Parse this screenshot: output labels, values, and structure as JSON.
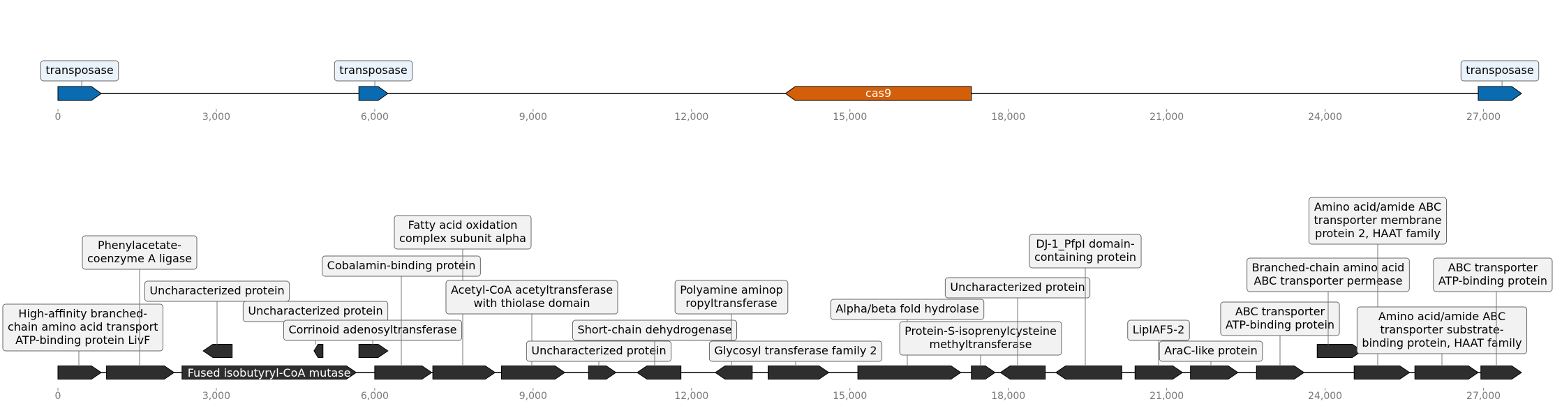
{
  "colors": {
    "transposase": "#0a6bb0",
    "cas9": "#d35f0a",
    "gene": "#2e2e2e",
    "label_box_blue": "#eaf3fb",
    "label_box_gray": "#f2f2f2",
    "tick_text": "#777777"
  },
  "chart_data": [
    {
      "type": "gene-map",
      "track": "top",
      "xlim": [
        0,
        27700
      ],
      "ticks": [
        0,
        3000,
        6000,
        9000,
        12000,
        15000,
        18000,
        21000,
        24000,
        27000
      ],
      "tick_labels": [
        "0",
        "3,000",
        "6,000",
        "9,000",
        "12,000",
        "15,000",
        "18,000",
        "21,000",
        "24,000",
        "27,000"
      ],
      "features": [
        {
          "start": 0,
          "end": 820,
          "strand": 1,
          "color_key": "transposase",
          "label": "transposase",
          "label_pos": "above"
        },
        {
          "start": 5700,
          "end": 6250,
          "strand": 1,
          "color_key": "transposase",
          "label": "transposase",
          "label_pos": "above"
        },
        {
          "start": 13780,
          "end": 17300,
          "strand": -1,
          "color_key": "cas9",
          "label": "cas9",
          "label_pos": "inside"
        },
        {
          "start": 26900,
          "end": 27720,
          "strand": 1,
          "color_key": "transposase",
          "label": "transposase",
          "label_pos": "above"
        }
      ]
    },
    {
      "type": "gene-map",
      "track": "bottom",
      "xlim": [
        0,
        27700
      ],
      "ticks": [
        0,
        3000,
        6000,
        9000,
        12000,
        15000,
        18000,
        21000,
        24000,
        27000
      ],
      "tick_labels": [
        "0",
        "3,000",
        "6,000",
        "9,000",
        "12,000",
        "15,000",
        "18,000",
        "21,000",
        "24,000",
        "27,000"
      ],
      "features": [
        {
          "start": 0,
          "end": 820,
          "strand": 1,
          "label": "High-affinity branched-\nchain amino acid transport\nATP-binding protein LivF"
        },
        {
          "start": 920,
          "end": 2200,
          "strand": 1,
          "label": "Phenylacetate-\ncoenzyme A ligase"
        },
        {
          "start": 2350,
          "end": 5650,
          "strand": 1,
          "label": "Fused isobutyryl-CoA mutase",
          "label_pos": "inside"
        },
        {
          "start": 2750,
          "end": 3300,
          "strand": -1,
          "raised": true,
          "label": "Uncharacterized protein"
        },
        {
          "start": 4850,
          "end": 5020,
          "strand": -1,
          "raised": true,
          "label": "Uncharacterized protein"
        },
        {
          "start": 5700,
          "end": 6250,
          "strand": 1,
          "raised": true,
          "label": "Corrinoid adenosyltransferase"
        },
        {
          "start": 6000,
          "end": 7080,
          "strand": 1,
          "label": "Cobalamin-binding protein"
        },
        {
          "start": 7100,
          "end": 8280,
          "strand": 1,
          "label": "Fatty acid oxidation\ncomplex subunit alpha"
        },
        {
          "start": 8400,
          "end": 9600,
          "strand": 1,
          "label": "Acetyl-CoA acetyltransferase\nwith thiolase domain"
        },
        {
          "start": 10050,
          "end": 10570,
          "strand": 1,
          "label": "Uncharacterized protein"
        },
        {
          "start": 10970,
          "end": 11800,
          "strand": -1,
          "label": "Short-chain dehydrogenase"
        },
        {
          "start": 12450,
          "end": 13150,
          "strand": -1,
          "label": "Polyamine aminop\nropyltransferase"
        },
        {
          "start": 13450,
          "end": 14600,
          "strand": 1,
          "label": "Glycosyl transferase family 2"
        },
        {
          "start": 15150,
          "end": 17100,
          "strand": 1,
          "label": "Alpha/beta fold hydrolase"
        },
        {
          "start": 17300,
          "end": 17750,
          "strand": 1,
          "label": "Protein-S-isoprenylcysteine\nmethyltransferase"
        },
        {
          "start": 17850,
          "end": 18700,
          "strand": -1,
          "label": "Uncharacterized protein"
        },
        {
          "start": 18900,
          "end": 20150,
          "strand": -1,
          "label": "DJ-1_PfpI domain-\ncontaining protein"
        },
        {
          "start": 20400,
          "end": 21300,
          "strand": 1,
          "label": "LipIAF5-2"
        },
        {
          "start": 21450,
          "end": 22350,
          "strand": 1,
          "label": "AraC-like protein"
        },
        {
          "start": 22700,
          "end": 23600,
          "strand": 1,
          "label": "ABC transporter\nATP-binding protein"
        },
        {
          "start": 23850,
          "end": 24700,
          "strand": 1,
          "raised": true,
          "label": "Branched-chain amino acid\nABC transporter permease"
        },
        {
          "start": 24550,
          "end": 25600,
          "strand": 1,
          "label": "Amino acid/amide ABC\ntransporter membrane\nprotein 2, HAAT family"
        },
        {
          "start": 25700,
          "end": 26900,
          "strand": 1,
          "label": "Amino acid/amide ABC\ntransporter substrate-\nbinding protein, HAAT family"
        },
        {
          "start": 26950,
          "end": 27720,
          "strand": 1,
          "label": "ABC transporter\nATP-binding protein"
        }
      ]
    }
  ]
}
